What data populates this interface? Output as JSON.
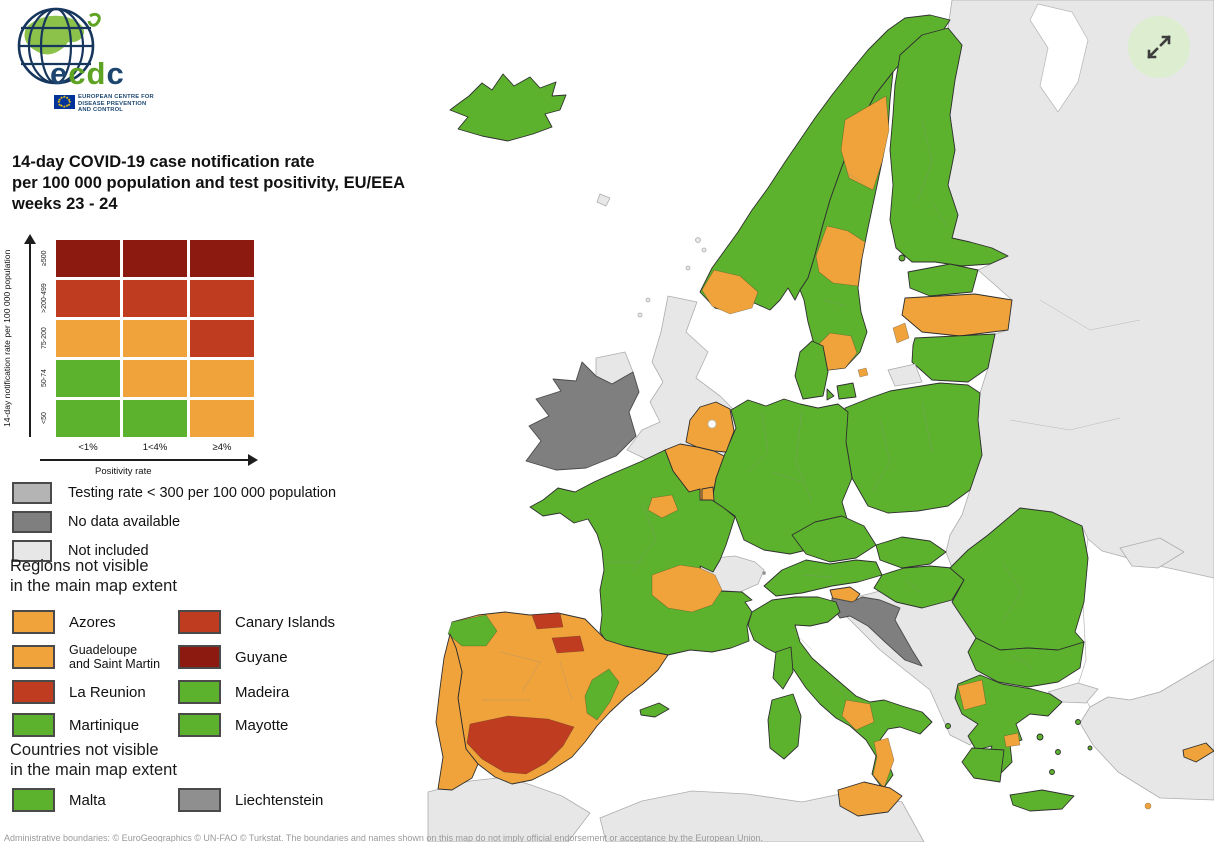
{
  "logo": {
    "wordmark": "ecdc",
    "subtitle_lines": [
      "EUROPEAN CENTRE FOR",
      "DISEASE PREVENTION",
      "AND CONTROL"
    ]
  },
  "title": {
    "lines": [
      "14-day COVID-19 case notification rate",
      "per 100 000 population and test positivity, EU/EEA",
      "weeks 23 - 24"
    ]
  },
  "matrix": {
    "y_axis_label": "14-day notification rate per 100 000 population",
    "x_axis_label": "Positivity rate",
    "row_labels": [
      "≥500",
      ">200-499",
      "75-200",
      "50-74",
      "<50"
    ],
    "col_labels": [
      "<1%",
      "1<4%",
      "≥4%"
    ],
    "cells": [
      [
        "darkred",
        "darkred",
        "darkred"
      ],
      [
        "red",
        "red",
        "red"
      ],
      [
        "orange",
        "orange",
        "red"
      ],
      [
        "green",
        "orange",
        "orange"
      ],
      [
        "green",
        "green",
        "orange"
      ]
    ]
  },
  "palette": {
    "green": "#5cb22d",
    "orange": "#f0a33a",
    "red": "#c03c20",
    "darkred": "#8d1a10",
    "testing_gray": "#b4b4b4",
    "nodata_gray": "#7f7f7f",
    "notincluded_gray": "#e7e7e7",
    "mid_gray": "#8f8f8f",
    "sea": "#ffffff"
  },
  "status_legend": [
    {
      "label": "Testing rate < 300 per 100 000 population",
      "color": "testing_gray"
    },
    {
      "label": "No data available",
      "color": "nodata_gray"
    },
    {
      "label": "Not included",
      "color": "notincluded_gray"
    }
  ],
  "regions_not_visible": {
    "heading_lines": [
      "Regions not visible",
      "in the main map extent"
    ],
    "items": [
      {
        "label": "Azores",
        "label2": "",
        "color": "orange"
      },
      {
        "label": "Canary Islands",
        "label2": "",
        "color": "red"
      },
      {
        "label": "Guadeloupe",
        "label2": "and Saint Martin",
        "color": "orange"
      },
      {
        "label": "Guyane",
        "label2": "",
        "color": "darkred"
      },
      {
        "label": "La Reunion",
        "label2": "",
        "color": "red"
      },
      {
        "label": "Madeira",
        "label2": "",
        "color": "green"
      },
      {
        "label": "Martinique",
        "label2": "",
        "color": "green"
      },
      {
        "label": "Mayotte",
        "label2": "",
        "color": "green"
      }
    ]
  },
  "countries_not_visible": {
    "heading_lines": [
      "Countries not visible",
      "in the main map extent"
    ],
    "items": [
      {
        "label": "Malta",
        "label2": "",
        "color": "green"
      },
      {
        "label": "Liechtenstein",
        "label2": "",
        "color": "mid_gray"
      }
    ]
  },
  "controls": {
    "expand_button": "Expand map"
  },
  "footer": {
    "attribution": "Administrative boundaries: © EuroGeographics © UN-FAO © Turkstat. The boundaries and names shown on this map do not imply official endorsement or acceptance by the European Union."
  },
  "map_regions": {
    "russia_east": "notincluded_gray",
    "white_sea": "sea",
    "black_sea": "sea",
    "crimea": "notincluded_gray",
    "turkey": "notincluded_gray",
    "turkey_thrace": "notincluded_gray",
    "africa_west": "notincluded_gray",
    "africa_east": "notincluded_gray",
    "balkans": "notincluded_gray",
    "great_britain": "notincluded_gray",
    "northern_ireland": "notincluded_gray",
    "scottish_isles": "notincluded_gray",
    "faroe": "notincluded_gray",
    "ireland": "nodata_gray",
    "croatia": "nodata_gray",
    "switzerland": "notincluded_gray",
    "kaliningrad": "notincluded_gray",
    "liechtenstein_dot": "mid_gray",
    "iceland": "green",
    "norway": "green",
    "norway_south": "orange",
    "sweden": "green",
    "sweden_north": "orange",
    "sweden_mid": "orange",
    "sweden_south": "orange",
    "gotland": "orange",
    "bornholm": "orange",
    "aland": "green",
    "denmark": "green",
    "denmark_zealand": "green",
    "denmark_funen": "green",
    "finland": "green",
    "estonia": "green",
    "latvia": "orange",
    "lithuania": "green",
    "poland": "green",
    "germany": "green",
    "netherlands": "orange",
    "belgium": "orange",
    "luxembourg": "orange",
    "france": "green",
    "france_idf": "orange",
    "france_ara": "orange",
    "austria": "green",
    "czechia": "green",
    "slovakia": "green",
    "hungary": "green",
    "slovenia": "orange",
    "romania": "green",
    "bulgaria": "green",
    "greece": "green",
    "greece_epirus": "orange",
    "greece_attica": "orange",
    "crete": "green",
    "aegean_islands": "green",
    "ionian_islands": "green",
    "rhodes": "orange",
    "italy": "green",
    "campania": "orange",
    "calabria": "orange",
    "sicily": "orange",
    "sardinia": "green",
    "corsica": "green",
    "spain": "orange",
    "galicia": "green",
    "cantabria": "red",
    "la_rioja": "red",
    "andalusia": "red",
    "valencia": "green",
    "balearics": "green",
    "portugal": "orange",
    "cyprus": "orange"
  }
}
